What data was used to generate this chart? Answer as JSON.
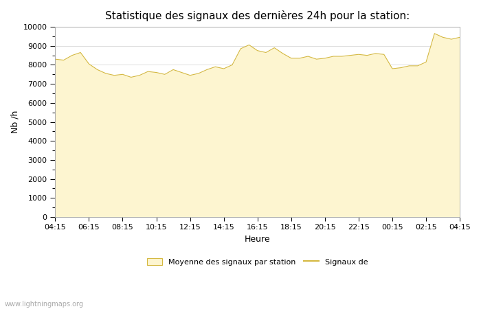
{
  "title": "Statistique des signaux des dernières 24h pour la station:",
  "xlabel": "Heure",
  "ylabel": "Nb /h",
  "xlim": [
    0,
    24
  ],
  "ylim": [
    0,
    10000
  ],
  "yticks": [
    0,
    1000,
    2000,
    3000,
    4000,
    5000,
    6000,
    7000,
    8000,
    9000,
    10000
  ],
  "xtick_labels": [
    "04:15",
    "06:15",
    "08:15",
    "10:15",
    "12:15",
    "14:15",
    "16:15",
    "18:15",
    "20:15",
    "22:15",
    "00:15",
    "02:15",
    "04:15"
  ],
  "fill_color": "#fdf5d0",
  "fill_edge_color": "#d4b840",
  "line_color": "#d4b840",
  "background_color": "#ffffff",
  "plot_bg_color": "#ffffff",
  "watermark": "www.lightningmaps.org",
  "legend_fill_label": "Moyenne des signaux par station",
  "legend_line_label": "Signaux de",
  "x_values": [
    0.0,
    0.5,
    1.0,
    1.5,
    2.0,
    2.5,
    3.0,
    3.5,
    4.0,
    4.5,
    5.0,
    5.5,
    6.0,
    6.5,
    7.0,
    7.5,
    8.0,
    8.5,
    9.0,
    9.5,
    10.0,
    10.5,
    11.0,
    11.5,
    12.0,
    12.5,
    13.0,
    13.5,
    14.0,
    14.5,
    15.0,
    15.5,
    16.0,
    16.5,
    17.0,
    17.5,
    18.0,
    18.5,
    19.0,
    19.5,
    20.0,
    20.5,
    21.0,
    21.5,
    22.0,
    22.5,
    23.0,
    23.5,
    24.0
  ],
  "y_values": [
    8300,
    8250,
    8500,
    8650,
    8050,
    7750,
    7550,
    7450,
    7500,
    7350,
    7450,
    7650,
    7600,
    7500,
    7750,
    7600,
    7450,
    7550,
    7750,
    7900,
    7800,
    8000,
    8850,
    9050,
    8750,
    8650,
    8900,
    8600,
    8350,
    8350,
    8450,
    8300,
    8350,
    8450,
    8450,
    8500,
    8550,
    8500,
    8600,
    8550,
    7800,
    7850,
    7950,
    7950,
    8150,
    9650,
    9450,
    9350,
    9450
  ],
  "title_fontsize": 11,
  "tick_fontsize": 8,
  "label_fontsize": 9,
  "watermark_fontsize": 7,
  "grid_color": "#dddddd",
  "spine_color": "#aaaaaa"
}
